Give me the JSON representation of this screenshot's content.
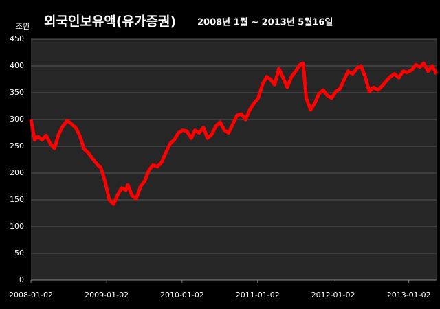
{
  "chart_data": {
    "type": "line",
    "title": "외국인보유액(유가증권)",
    "subtitle": "2008년 1월 ~ 2013년 5월16일",
    "y_unit": "조원",
    "x": [
      "2008-01-02",
      "2008-01-20",
      "2008-02-05",
      "2008-02-25",
      "2008-03-15",
      "2008-04-05",
      "2008-04-25",
      "2008-05-15",
      "2008-06-05",
      "2008-06-25",
      "2008-07-15",
      "2008-08-05",
      "2008-08-25",
      "2008-09-15",
      "2008-10-05",
      "2008-10-20",
      "2008-11-05",
      "2008-11-20",
      "2008-12-05",
      "2008-12-25",
      "2009-01-15",
      "2009-02-05",
      "2009-02-25",
      "2009-03-15",
      "2009-04-05",
      "2009-04-15",
      "2009-05-05",
      "2009-05-25",
      "2009-06-15",
      "2009-07-05",
      "2009-07-25",
      "2009-08-15",
      "2009-09-05",
      "2009-09-25",
      "2009-10-15",
      "2009-11-05",
      "2009-11-25",
      "2009-12-15",
      "2010-01-05",
      "2010-01-25",
      "2010-02-15",
      "2010-03-05",
      "2010-03-25",
      "2010-04-15",
      "2010-05-05",
      "2010-05-25",
      "2010-06-15",
      "2010-07-05",
      "2010-07-25",
      "2010-08-15",
      "2010-09-05",
      "2010-09-25",
      "2010-10-15",
      "2010-11-05",
      "2010-11-25",
      "2010-12-15",
      "2011-01-05",
      "2011-01-25",
      "2011-02-15",
      "2011-03-05",
      "2011-03-25",
      "2011-04-15",
      "2011-05-05",
      "2011-05-25",
      "2011-06-15",
      "2011-07-05",
      "2011-07-25",
      "2011-08-10",
      "2011-08-25",
      "2011-09-15",
      "2011-10-05",
      "2011-10-25",
      "2011-11-15",
      "2011-12-05",
      "2011-12-25",
      "2012-01-15",
      "2012-02-05",
      "2012-02-25",
      "2012-03-15",
      "2012-04-05",
      "2012-04-25",
      "2012-05-15",
      "2012-06-05",
      "2012-06-25",
      "2012-07-15",
      "2012-08-05",
      "2012-08-25",
      "2012-09-15",
      "2012-10-05",
      "2012-10-25",
      "2012-11-15",
      "2012-12-05",
      "2012-12-25",
      "2013-01-15",
      "2013-02-05",
      "2013-02-25",
      "2013-03-15",
      "2013-04-05",
      "2013-04-25",
      "2013-05-16"
    ],
    "values": [
      300,
      262,
      268,
      262,
      270,
      255,
      246,
      272,
      288,
      298,
      292,
      285,
      270,
      245,
      238,
      230,
      222,
      215,
      210,
      185,
      150,
      142,
      160,
      172,
      168,
      178,
      158,
      152,
      175,
      185,
      205,
      215,
      212,
      220,
      238,
      255,
      262,
      275,
      280,
      278,
      265,
      280,
      275,
      285,
      265,
      272,
      288,
      295,
      280,
      275,
      292,
      308,
      310,
      300,
      318,
      330,
      340,
      365,
      380,
      375,
      365,
      395,
      378,
      360,
      380,
      390,
      402,
      405,
      340,
      318,
      330,
      348,
      355,
      345,
      340,
      352,
      358,
      375,
      390,
      385,
      395,
      400,
      380,
      352,
      360,
      355,
      362,
      372,
      380,
      385,
      378,
      390,
      388,
      392,
      402,
      398,
      405,
      390,
      400,
      385
    ],
    "color": "#ff0000",
    "xlim": [
      "2008-01-02",
      "2013-05-16"
    ],
    "xticks": [
      "2008-01-02",
      "2009-01-02",
      "2010-01-02",
      "2011-01-02",
      "2012-01-02",
      "2013-01-02"
    ],
    "ylim": [
      0,
      450
    ],
    "yticks": [
      0,
      50,
      100,
      150,
      200,
      250,
      300,
      350,
      400,
      450
    ],
    "grid": true
  }
}
